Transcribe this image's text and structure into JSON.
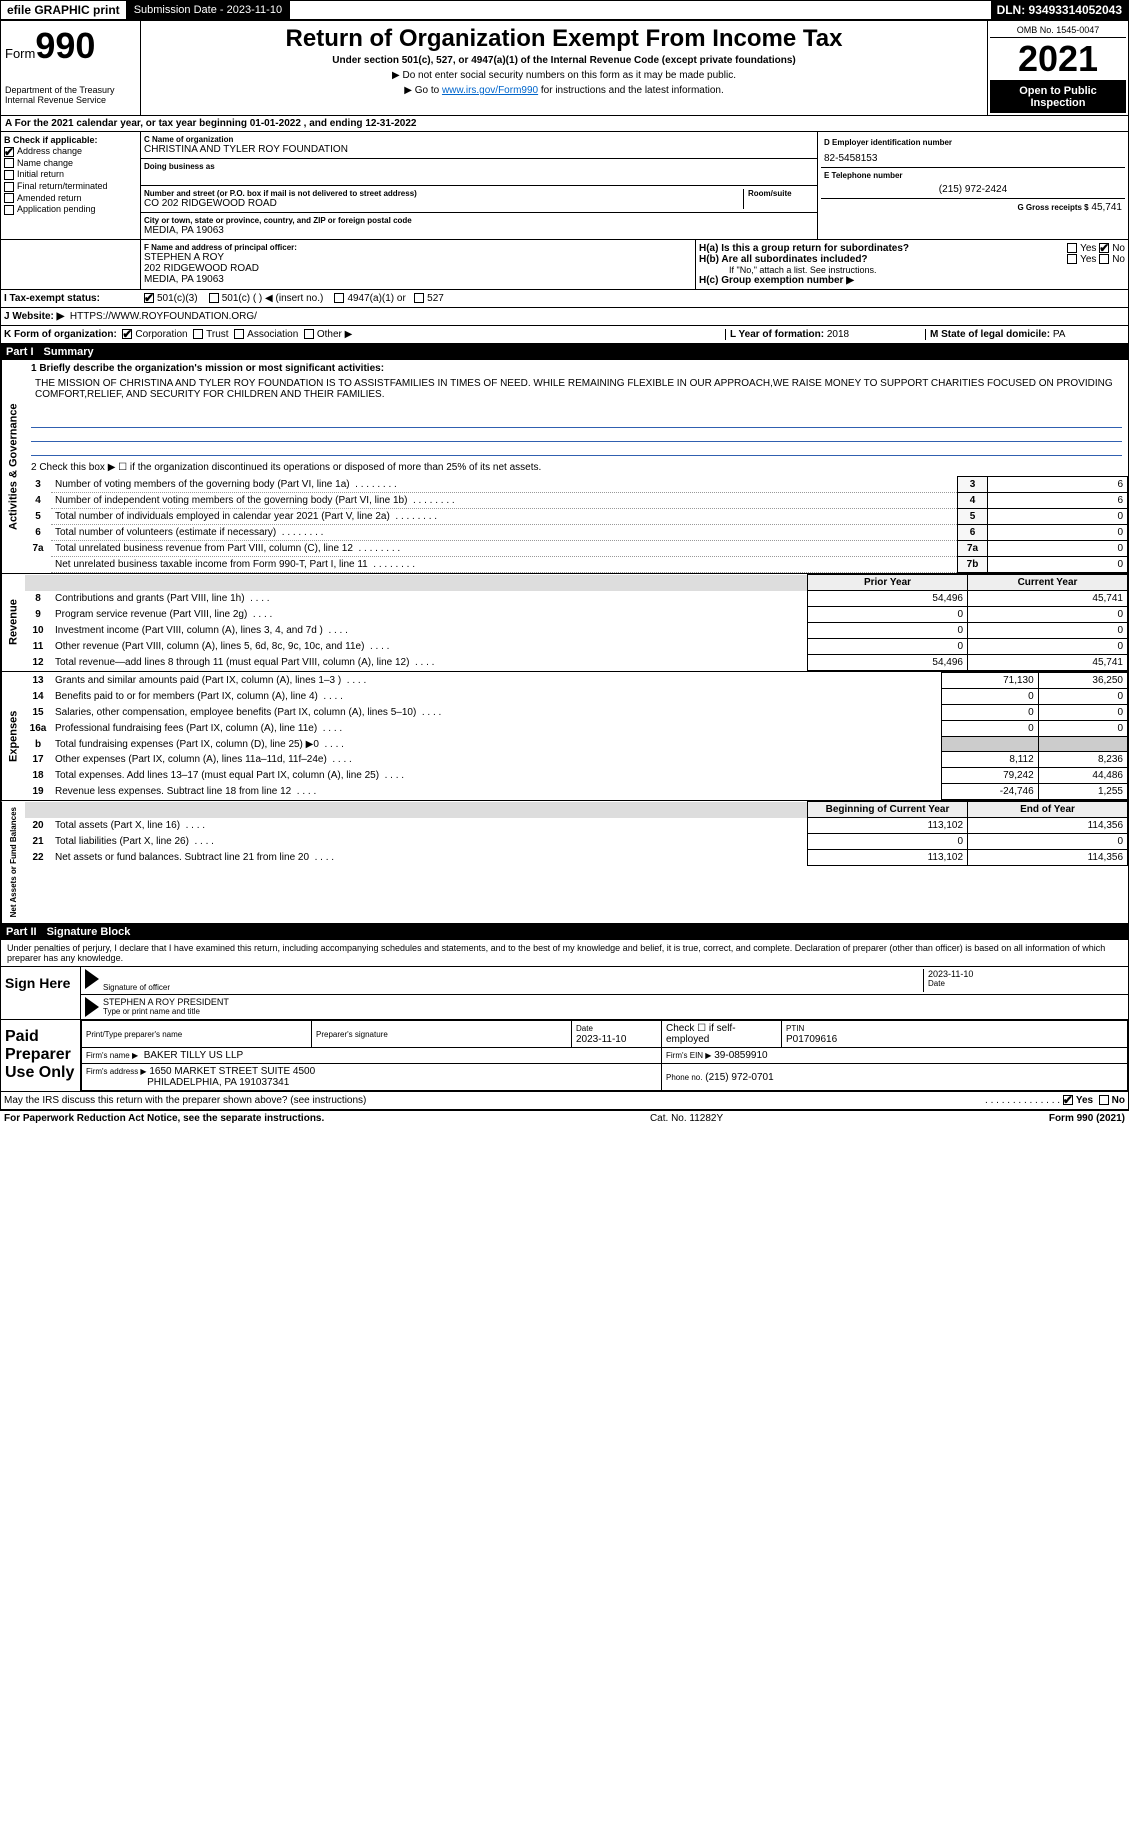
{
  "topbar": {
    "efile": "efile GRAPHIC print",
    "submission_label": "Submission Date - 2023-11-10",
    "dln": "DLN: 93493314052043"
  },
  "header": {
    "form_prefix": "Form",
    "form_number": "990",
    "dept": "Department of the Treasury",
    "irs": "Internal Revenue Service",
    "title": "Return of Organization Exempt From Income Tax",
    "subtitle": "Under section 501(c), 527, or 4947(a)(1) of the Internal Revenue Code (except private foundations)",
    "note1": "▶ Do not enter social security numbers on this form as it may be made public.",
    "note2_pre": "▶ Go to ",
    "note2_link": "www.irs.gov/Form990",
    "note2_post": " for instructions and the latest information.",
    "omb": "OMB No. 1545-0047",
    "year": "2021",
    "open": "Open to Public Inspection"
  },
  "section_a": "A For the 2021 calendar year, or tax year beginning 01-01-2022    , and ending 12-31-2022",
  "block_b": {
    "title": "B Check if applicable:",
    "items": [
      {
        "label": "Address change",
        "checked": true
      },
      {
        "label": "Name change",
        "checked": false
      },
      {
        "label": "Initial return",
        "checked": false
      },
      {
        "label": "Final return/terminated",
        "checked": false
      },
      {
        "label": "Amended return",
        "checked": false
      },
      {
        "label": "Application pending",
        "checked": false
      }
    ]
  },
  "block_c": {
    "name_label": "C Name of organization",
    "name": "CHRISTINA AND TYLER ROY FOUNDATION",
    "dba_label": "Doing business as",
    "addr_label": "Number and street (or P.O. box if mail is not delivered to street address)",
    "room_label": "Room/suite",
    "addr": "CO 202 RIDGEWOOD ROAD",
    "city_label": "City or town, state or province, country, and ZIP or foreign postal code",
    "city": "MEDIA, PA  19063"
  },
  "block_d": {
    "ein_label": "D Employer identification number",
    "ein": "82-5458153",
    "tel_label": "E Telephone number",
    "tel": "(215) 972-2424",
    "gross_label": "G Gross receipts $",
    "gross": "45,741"
  },
  "block_f": {
    "label": "F Name and address of principal officer:",
    "name": "STEPHEN A ROY",
    "addr1": "202 RIDGEWOOD ROAD",
    "addr2": "MEDIA, PA  19063"
  },
  "block_h": {
    "a": "H(a)  Is this a group return for subordinates?",
    "b": "H(b)  Are all subordinates included?",
    "b_note": "If \"No,\" attach a list. See instructions.",
    "c": "H(c)  Group exemption number ▶",
    "yes": "Yes",
    "no": "No"
  },
  "line_i": {
    "label": "I   Tax-exempt status:",
    "opts": [
      "501(c)(3)",
      "501(c) (   ) ◀ (insert no.)",
      "4947(a)(1) or",
      "527"
    ]
  },
  "line_j": {
    "label": "J   Website: ▶",
    "value": "HTTPS://WWW.ROYFOUNDATION.ORG/"
  },
  "line_k": {
    "label": "K Form of organization:",
    "opts": [
      "Corporation",
      "Trust",
      "Association",
      "Other ▶"
    ]
  },
  "line_l": {
    "label": "L Year of formation:",
    "value": "2018"
  },
  "line_m": {
    "label": "M State of legal domicile:",
    "value": "PA"
  },
  "part1": {
    "num": "Part I",
    "title": "Summary",
    "q1_label": "1  Briefly describe the organization's mission or most significant activities:",
    "mission": "THE MISSION OF CHRISTINA AND TYLER ROY FOUNDATION IS TO ASSISTFAMILIES IN TIMES OF NEED. WHILE REMAINING FLEXIBLE IN OUR APPROACH,WE RAISE MONEY TO SUPPORT CHARITIES FOCUSED ON PROVIDING COMFORT,RELIEF, AND SECURITY FOR CHILDREN AND THEIR FAMILIES.",
    "q2": "2  Check this box ▶ ☐  if the organization discontinued its operations or disposed of more than 25% of its net assets.",
    "governance_rows": [
      {
        "n": "3",
        "text": "Number of voting members of the governing body (Part VI, line 1a)",
        "box": "3",
        "val": "6"
      },
      {
        "n": "4",
        "text": "Number of independent voting members of the governing body (Part VI, line 1b)",
        "box": "4",
        "val": "6"
      },
      {
        "n": "5",
        "text": "Total number of individuals employed in calendar year 2021 (Part V, line 2a)",
        "box": "5",
        "val": "0"
      },
      {
        "n": "6",
        "text": "Total number of volunteers (estimate if necessary)",
        "box": "6",
        "val": "0"
      },
      {
        "n": "7a",
        "text": "Total unrelated business revenue from Part VIII, column (C), line 12",
        "box": "7a",
        "val": "0"
      },
      {
        "n": "",
        "text": "Net unrelated business taxable income from Form 990-T, Part I, line 11",
        "box": "7b",
        "val": "0"
      }
    ],
    "col_prior": "Prior Year",
    "col_current": "Current Year",
    "revenue_rows": [
      {
        "n": "8",
        "text": "Contributions and grants (Part VIII, line 1h)",
        "prior": "54,496",
        "cur": "45,741"
      },
      {
        "n": "9",
        "text": "Program service revenue (Part VIII, line 2g)",
        "prior": "0",
        "cur": "0"
      },
      {
        "n": "10",
        "text": "Investment income (Part VIII, column (A), lines 3, 4, and 7d )",
        "prior": "0",
        "cur": "0"
      },
      {
        "n": "11",
        "text": "Other revenue (Part VIII, column (A), lines 5, 6d, 8c, 9c, 10c, and 11e)",
        "prior": "0",
        "cur": "0"
      },
      {
        "n": "12",
        "text": "Total revenue—add lines 8 through 11 (must equal Part VIII, column (A), line 12)",
        "prior": "54,496",
        "cur": "45,741"
      }
    ],
    "expense_rows": [
      {
        "n": "13",
        "text": "Grants and similar amounts paid (Part IX, column (A), lines 1–3 )",
        "prior": "71,130",
        "cur": "36,250"
      },
      {
        "n": "14",
        "text": "Benefits paid to or for members (Part IX, column (A), line 4)",
        "prior": "0",
        "cur": "0"
      },
      {
        "n": "15",
        "text": "Salaries, other compensation, employee benefits (Part IX, column (A), lines 5–10)",
        "prior": "0",
        "cur": "0"
      },
      {
        "n": "16a",
        "text": "Professional fundraising fees (Part IX, column (A), line 11e)",
        "prior": "0",
        "cur": "0"
      },
      {
        "n": "b",
        "text": "Total fundraising expenses (Part IX, column (D), line 25) ▶0",
        "prior": "",
        "cur": ""
      },
      {
        "n": "17",
        "text": "Other expenses (Part IX, column (A), lines 11a–11d, 11f–24e)",
        "prior": "8,112",
        "cur": "8,236"
      },
      {
        "n": "18",
        "text": "Total expenses. Add lines 13–17 (must equal Part IX, column (A), line 25)",
        "prior": "79,242",
        "cur": "44,486"
      },
      {
        "n": "19",
        "text": "Revenue less expenses. Subtract line 18 from line 12",
        "prior": "-24,746",
        "cur": "1,255"
      }
    ],
    "col_begin": "Beginning of Current Year",
    "col_end": "End of Year",
    "net_rows": [
      {
        "n": "20",
        "text": "Total assets (Part X, line 16)",
        "prior": "113,102",
        "cur": "114,356"
      },
      {
        "n": "21",
        "text": "Total liabilities (Part X, line 26)",
        "prior": "0",
        "cur": "0"
      },
      {
        "n": "22",
        "text": "Net assets or fund balances. Subtract line 21 from line 20",
        "prior": "113,102",
        "cur": "114,356"
      }
    ],
    "side_gov": "Activities & Governance",
    "side_rev": "Revenue",
    "side_exp": "Expenses",
    "side_net": "Net Assets or Fund Balances"
  },
  "part2": {
    "num": "Part II",
    "title": "Signature Block",
    "perjury": "Under penalties of perjury, I declare that I have examined this return, including accompanying schedules and statements, and to the best of my knowledge and belief, it is true, correct, and complete. Declaration of preparer (other than officer) is based on all information of which preparer has any knowledge.",
    "sign_here": "Sign Here",
    "sig_officer": "Signature of officer",
    "sig_date": "2023-11-10",
    "date_label": "Date",
    "officer_name": "STEPHEN A ROY PRESIDENT",
    "name_label": "Type or print name and title",
    "paid": "Paid Preparer Use Only",
    "prep_name_label": "Print/Type preparer's name",
    "prep_sig_label": "Preparer's signature",
    "prep_date_label": "Date",
    "prep_date": "2023-11-10",
    "check_self": "Check ☐ if self-employed",
    "ptin_label": "PTIN",
    "ptin": "P01709616",
    "firm_name_label": "Firm's name    ▶",
    "firm_name": "BAKER TILLY US LLP",
    "firm_ein_label": "Firm's EIN ▶",
    "firm_ein": "39-0859910",
    "firm_addr_label": "Firm's address ▶",
    "firm_addr1": "1650 MARKET STREET SUITE 4500",
    "firm_addr2": "PHILADELPHIA, PA  191037341",
    "phone_label": "Phone no.",
    "phone": "(215) 972-0701",
    "may_irs": "May the IRS discuss this return with the preparer shown above? (see instructions)",
    "yes": "Yes",
    "no": "No"
  },
  "footer": {
    "left": "For Paperwork Reduction Act Notice, see the separate instructions.",
    "mid": "Cat. No. 11282Y",
    "right": "Form 990 (2021)"
  }
}
